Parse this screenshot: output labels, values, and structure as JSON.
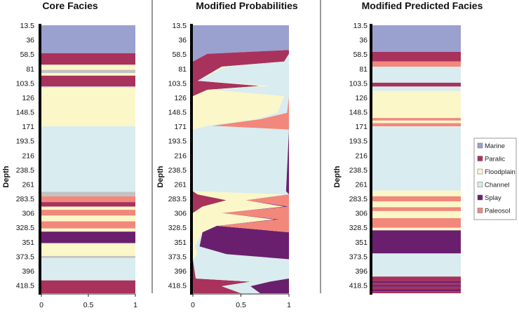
{
  "colors": {
    "Marine": "#9aa1cf",
    "Paralic": "#a8325c",
    "Floodplain": "#fbf7c9",
    "Channel": "#d9ecef",
    "Splay": "#6a1f6e",
    "Paleosol": "#f2877c",
    "gap": "#c2c2c2"
  },
  "legend": [
    "Marine",
    "Paralic",
    "Floodplain",
    "Channel",
    "Splay",
    "Paleosol"
  ],
  "chart_data": [
    {
      "type": "bar",
      "title": "Core Facies",
      "ylabel": "Depth",
      "y_ticks": [
        "13.5",
        "36",
        "58.5",
        "81",
        "103.5",
        "126",
        "148.5",
        "171",
        "193.5",
        "216",
        "238.5",
        "261",
        "283.5",
        "306",
        "328.5",
        "351",
        "373.5",
        "396",
        "418.5"
      ],
      "x_ticks": [
        "0",
        "0.5",
        "1"
      ],
      "ylim": [
        13.5,
        431
      ],
      "xlim": [
        0,
        1
      ],
      "intervals": [
        {
          "top": 13.5,
          "base": 57,
          "facies": "Marine"
        },
        {
          "top": 57,
          "base": 75,
          "facies": "Paralic"
        },
        {
          "top": 75,
          "base": 83,
          "facies": "Floodplain"
        },
        {
          "top": 83,
          "base": 88,
          "facies": "gap"
        },
        {
          "top": 88,
          "base": 92,
          "facies": "Floodplain"
        },
        {
          "top": 92,
          "base": 109,
          "facies": "Paralic"
        },
        {
          "top": 109,
          "base": 111,
          "facies": "Channel"
        },
        {
          "top": 111,
          "base": 171,
          "facies": "Floodplain"
        },
        {
          "top": 171,
          "base": 273,
          "facies": "Channel"
        },
        {
          "top": 273,
          "base": 280,
          "facies": "gap"
        },
        {
          "top": 280,
          "base": 289,
          "facies": "Paleosol"
        },
        {
          "top": 289,
          "base": 296,
          "facies": "Paralic"
        },
        {
          "top": 296,
          "base": 301,
          "facies": "Floodplain"
        },
        {
          "top": 301,
          "base": 310,
          "facies": "Paleosol"
        },
        {
          "top": 310,
          "base": 319,
          "facies": "Floodplain"
        },
        {
          "top": 319,
          "base": 330,
          "facies": "Paleosol"
        },
        {
          "top": 330,
          "base": 335,
          "facies": "Floodplain"
        },
        {
          "top": 335,
          "base": 353,
          "facies": "Splay"
        },
        {
          "top": 353,
          "base": 373,
          "facies": "Floodplain"
        },
        {
          "top": 373,
          "base": 376,
          "facies": "gap"
        },
        {
          "top": 376,
          "base": 411,
          "facies": "Channel"
        },
        {
          "top": 411,
          "base": 431,
          "facies": "Paralic"
        }
      ]
    },
    {
      "type": "area",
      "title": "Modified Probabilities",
      "ylabel": "Depth",
      "y_ticks": [
        "13.5",
        "36",
        "58.5",
        "81",
        "103.5",
        "126",
        "148.5",
        "171",
        "193.5",
        "216",
        "238.5",
        "261",
        "283.5",
        "306",
        "328.5",
        "351",
        "373.5",
        "396",
        "418.5"
      ],
      "x_ticks": [
        "0",
        "0.5",
        "1"
      ],
      "ylim": [
        13.5,
        431
      ],
      "xlim": [
        0,
        1
      ],
      "series_order": [
        "Marine",
        "Paralic",
        "Floodplain",
        "Channel",
        "Splay",
        "Paleosol"
      ],
      "profiles": [
        {
          "depth": 13.5,
          "Marine": 1,
          "Paralic": 0,
          "Floodplain": 0,
          "Channel": 0,
          "Splay": 0,
          "Paleosol": 0
        },
        {
          "depth": 52,
          "Marine": 1,
          "Paralic": 0,
          "Floodplain": 0,
          "Channel": 0,
          "Splay": 0,
          "Paleosol": 0
        },
        {
          "depth": 58,
          "Marine": 0.15,
          "Paralic": 0.85,
          "Floodplain": 0,
          "Channel": 0,
          "Splay": 0,
          "Paleosol": 0
        },
        {
          "depth": 70,
          "Marine": 0,
          "Paralic": 0.95,
          "Floodplain": 0,
          "Channel": 0.05,
          "Splay": 0,
          "Paleosol": 0
        },
        {
          "depth": 78,
          "Marine": 0,
          "Paralic": 0.3,
          "Floodplain": 0.05,
          "Channel": 0.65,
          "Splay": 0,
          "Paleosol": 0
        },
        {
          "depth": 100,
          "Marine": 0,
          "Paralic": 0.05,
          "Floodplain": 0,
          "Channel": 0.95,
          "Splay": 0,
          "Paleosol": 0
        },
        {
          "depth": 108,
          "Marine": 0,
          "Paralic": 0.7,
          "Floodplain": 0.1,
          "Channel": 0.2,
          "Splay": 0,
          "Paleosol": 0
        },
        {
          "depth": 114,
          "Marine": 0,
          "Paralic": 0.15,
          "Floodplain": 0.05,
          "Channel": 0.8,
          "Splay": 0,
          "Paleosol": 0
        },
        {
          "depth": 124,
          "Marine": 0,
          "Paralic": 0,
          "Floodplain": 0.95,
          "Channel": 0.05,
          "Splay": 0,
          "Paleosol": 0
        },
        {
          "depth": 150,
          "Marine": 0,
          "Paralic": 0,
          "Floodplain": 0.88,
          "Channel": 0.1,
          "Splay": 0,
          "Paleosol": 0.02
        },
        {
          "depth": 160,
          "Marine": 0,
          "Paralic": 0,
          "Floodplain": 0.65,
          "Channel": 0.05,
          "Splay": 0,
          "Paleosol": 0.3
        },
        {
          "depth": 170,
          "Marine": 0,
          "Paralic": 0,
          "Floodplain": 0.15,
          "Channel": 0.05,
          "Splay": 0,
          "Paleosol": 0.8
        },
        {
          "depth": 176,
          "Marine": 0,
          "Paralic": 0,
          "Floodplain": 0,
          "Channel": 1,
          "Splay": 0,
          "Paleosol": 0
        },
        {
          "depth": 272,
          "Marine": 0,
          "Paralic": 0,
          "Floodplain": 0,
          "Channel": 0.97,
          "Splay": 0.03,
          "Paleosol": 0
        },
        {
          "depth": 277,
          "Marine": 0,
          "Paralic": 0.05,
          "Floodplain": 0.9,
          "Channel": 0.05,
          "Splay": 0,
          "Paleosol": 0
        },
        {
          "depth": 286,
          "Marine": 0,
          "Paralic": 0.35,
          "Floodplain": 0.2,
          "Channel": 0,
          "Splay": 0,
          "Paleosol": 0.45
        },
        {
          "depth": 296,
          "Marine": 0,
          "Paralic": 0.1,
          "Floodplain": 0.85,
          "Channel": 0,
          "Splay": 0.05,
          "Paleosol": 0
        },
        {
          "depth": 306,
          "Marine": 0,
          "Paralic": 0,
          "Floodplain": 0.3,
          "Channel": 0,
          "Splay": 0,
          "Paleosol": 0.7
        },
        {
          "depth": 316,
          "Marine": 0,
          "Paralic": 0,
          "Floodplain": 0.85,
          "Channel": 0,
          "Splay": 0.05,
          "Paleosol": 0.1
        },
        {
          "depth": 326,
          "Marine": 0,
          "Paralic": 0,
          "Floodplain": 0.25,
          "Channel": 0,
          "Splay": 0,
          "Paleosol": 0.75
        },
        {
          "depth": 336,
          "Marine": 0,
          "Paralic": 0,
          "Floodplain": 0.1,
          "Channel": 0,
          "Splay": 0.9,
          "Paleosol": 0
        },
        {
          "depth": 358,
          "Marine": 0,
          "Paralic": 0,
          "Floodplain": 0.02,
          "Channel": 0.05,
          "Splay": 0.93,
          "Paleosol": 0
        },
        {
          "depth": 370,
          "Marine": 0,
          "Paralic": 0,
          "Floodplain": 0.05,
          "Channel": 0.3,
          "Splay": 0.65,
          "Paleosol": 0
        },
        {
          "depth": 378,
          "Marine": 0,
          "Paralic": 0,
          "Floodplain": 0,
          "Channel": 1,
          "Splay": 0,
          "Paleosol": 0
        },
        {
          "depth": 408,
          "Marine": 0,
          "Paralic": 0.03,
          "Floodplain": 0,
          "Channel": 0.97,
          "Splay": 0,
          "Paleosol": 0
        },
        {
          "depth": 413,
          "Marine": 0,
          "Paralic": 0.6,
          "Floodplain": 0,
          "Channel": 0.2,
          "Splay": 0.2,
          "Paleosol": 0
        },
        {
          "depth": 420,
          "Marine": 0,
          "Paralic": 0.3,
          "Floodplain": 0,
          "Channel": 0.3,
          "Splay": 0.4,
          "Paleosol": 0
        },
        {
          "depth": 431,
          "Marine": 0,
          "Paralic": 0.5,
          "Floodplain": 0,
          "Channel": 0.2,
          "Splay": 0.3,
          "Paleosol": 0
        }
      ]
    },
    {
      "type": "bar",
      "title": "Modified Predicted Facies",
      "ylabel": "Depth",
      "y_ticks": [
        "13.5",
        "36",
        "58.5",
        "81",
        "103.5",
        "126",
        "148.5",
        "171",
        "193.5",
        "216",
        "238.5",
        "261",
        "283.5",
        "306",
        "328.5",
        "351",
        "373.5",
        "396",
        "418.5"
      ],
      "x_ticks": [],
      "ylim": [
        13.5,
        431
      ],
      "xlim": [
        0,
        1
      ],
      "intervals": [
        {
          "top": 13.5,
          "base": 55,
          "facies": "Marine"
        },
        {
          "top": 55,
          "base": 70,
          "facies": "Paralic"
        },
        {
          "top": 70,
          "base": 78,
          "facies": "Paleosol"
        },
        {
          "top": 78,
          "base": 103,
          "facies": "Channel"
        },
        {
          "top": 103,
          "base": 109,
          "facies": "Paralic"
        },
        {
          "top": 109,
          "base": 116,
          "facies": "Channel"
        },
        {
          "top": 116,
          "base": 158,
          "facies": "Floodplain"
        },
        {
          "top": 158,
          "base": 162,
          "facies": "Paleosol"
        },
        {
          "top": 162,
          "base": 166,
          "facies": "Floodplain"
        },
        {
          "top": 166,
          "base": 171,
          "facies": "Paleosol"
        },
        {
          "top": 171,
          "base": 271,
          "facies": "Channel"
        },
        {
          "top": 271,
          "base": 280,
          "facies": "Floodplain"
        },
        {
          "top": 280,
          "base": 288,
          "facies": "Paleosol"
        },
        {
          "top": 288,
          "base": 297,
          "facies": "Floodplain"
        },
        {
          "top": 297,
          "base": 303,
          "facies": "Paleosol"
        },
        {
          "top": 303,
          "base": 314,
          "facies": "Floodplain"
        },
        {
          "top": 314,
          "base": 329,
          "facies": "Paleosol"
        },
        {
          "top": 329,
          "base": 333,
          "facies": "Floodplain"
        },
        {
          "top": 333,
          "base": 369,
          "facies": "Splay"
        },
        {
          "top": 369,
          "base": 405,
          "facies": "Channel"
        },
        {
          "top": 405,
          "base": 412,
          "facies": "Paralic"
        },
        {
          "top": 412,
          "base": 415,
          "facies": "Splay"
        },
        {
          "top": 415,
          "base": 418,
          "facies": "Paralic"
        },
        {
          "top": 418,
          "base": 421,
          "facies": "Splay"
        },
        {
          "top": 421,
          "base": 425,
          "facies": "Paralic"
        },
        {
          "top": 425,
          "base": 428,
          "facies": "Splay"
        },
        {
          "top": 428,
          "base": 431,
          "facies": "Paralic"
        }
      ]
    }
  ]
}
